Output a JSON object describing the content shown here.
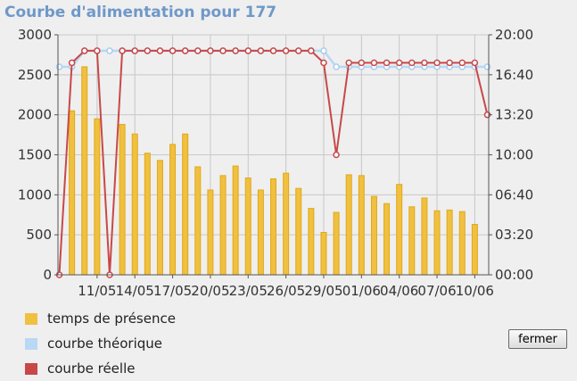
{
  "title": "Courbe d'alimentation pour 177",
  "close_label": "fermer",
  "legend": [
    {
      "label": "temps de présence",
      "color": "#f0c040"
    },
    {
      "label": "courbe théorique",
      "color": "#b8d8f4"
    },
    {
      "label": "courbe réelle",
      "color": "#c84848"
    }
  ],
  "chart_data": {
    "type": "bar",
    "title": "Courbe d'alimentation pour 177",
    "x_tick_labels": [
      "11/05",
      "14/05",
      "17/05",
      "20/05",
      "23/05",
      "26/05",
      "29/05",
      "01/06",
      "04/06",
      "07/06",
      "10/06"
    ],
    "y_left": {
      "min": 0,
      "max": 3000,
      "ticks": [
        0,
        500,
        1000,
        1500,
        2000,
        2500,
        3000
      ]
    },
    "y_right": {
      "min_minutes": 0,
      "max_minutes": 1200,
      "ticks": [
        "00:00",
        "03:20",
        "06:40",
        "10:00",
        "13:20",
        "16:40",
        "20:00"
      ]
    },
    "grid": true,
    "legend_position": "bottom-left",
    "series": [
      {
        "name": "temps de présence",
        "type": "bar",
        "axis": "left",
        "color": "#f0c040",
        "values": [
          2050,
          2600,
          1950,
          0,
          1880,
          1760,
          1520,
          1430,
          1630,
          1760,
          1350,
          1060,
          1240,
          1360,
          1210,
          1060,
          1200,
          1270,
          1080,
          830,
          530,
          780,
          1250,
          1240,
          980,
          890,
          1130,
          850,
          960,
          800,
          810,
          790,
          630
        ]
      },
      {
        "name": "courbe théorique",
        "type": "line",
        "axis": "right",
        "color": "#b8d8f4",
        "values": [
          "17:20",
          "17:20",
          "18:40",
          "18:40",
          "18:40",
          "18:40",
          "18:40",
          "18:40",
          "18:40",
          "18:40",
          "18:40",
          "18:40",
          "18:40",
          "18:40",
          "18:40",
          "18:40",
          "18:40",
          "18:40",
          "18:40",
          "18:40",
          "18:40",
          "18:40",
          "17:20",
          "17:20",
          "17:20",
          "17:20",
          "17:20",
          "17:20",
          "17:20",
          "17:20",
          "17:20",
          "17:20",
          "17:20",
          "17:20",
          "17:20"
        ]
      },
      {
        "name": "courbe réelle",
        "type": "line",
        "axis": "right",
        "color": "#c84848",
        "values": [
          "00:00",
          "17:40",
          "18:40",
          "18:40",
          "00:00",
          "18:40",
          "18:40",
          "18:40",
          "18:40",
          "18:40",
          "18:40",
          "18:40",
          "18:40",
          "18:40",
          "18:40",
          "18:40",
          "18:40",
          "18:40",
          "18:40",
          "18:40",
          "18:40",
          "17:40",
          "10:00",
          "17:40",
          "17:40",
          "17:40",
          "17:40",
          "17:40",
          "17:40",
          "17:40",
          "17:40",
          "17:40",
          "17:40",
          "17:40",
          "13:20"
        ]
      }
    ]
  }
}
